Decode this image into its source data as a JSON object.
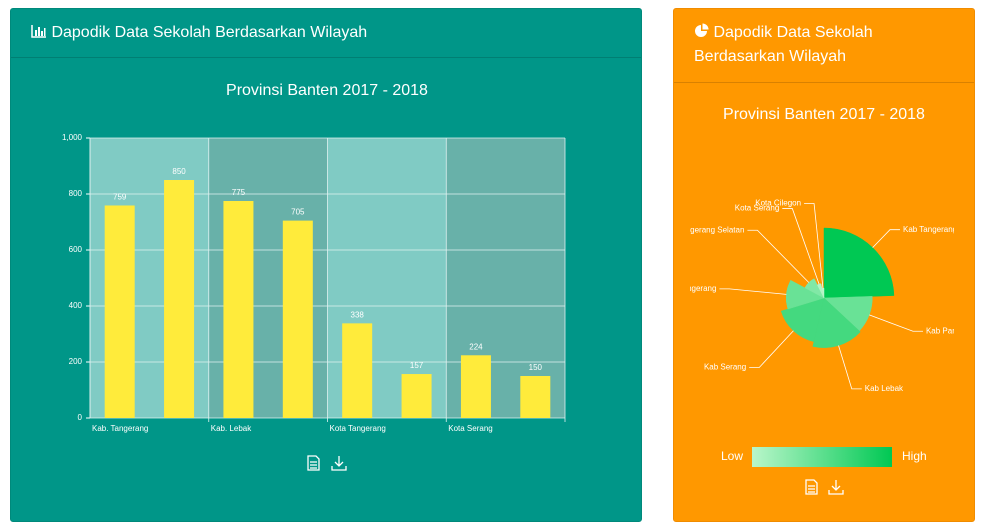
{
  "panels": [
    {
      "title": "Dapodik Data Sekolah Berdasarkan Wilayah"
    },
    {
      "title": "Dapodik Data Sekolah Berdasarkan Wilayah"
    }
  ],
  "chart_data": [
    {
      "type": "bar",
      "title": "Provinsi Banten 2017 - 2018",
      "categories": [
        "Kab. Tangerang",
        "Kab. Lebak",
        "Kota Tangerang",
        "Kota Serang"
      ],
      "series": [
        {
          "color": "#ffeb3b",
          "values": [
            759,
            775,
            338,
            224
          ]
        },
        {
          "color": "#ffeb3b",
          "values": [
            850,
            705,
            157,
            150
          ]
        }
      ],
      "ylim": [
        0,
        1000
      ],
      "yticks": [
        0,
        200,
        400,
        600,
        800,
        {
          "value": 1000,
          "label": "1,000"
        }
      ],
      "grid": true
    },
    {
      "type": "variablepie",
      "title": "Provinsi Banten 2017 - 2018",
      "categories": [
        "Kab Tangerang",
        "Kab Pandeglang",
        "Kab Lebak",
        "Kab Serang",
        "Kota Tangerang",
        "Kota Tangerang Selatan",
        "Kota Serang",
        "Kota Cilegon"
      ],
      "values": [
        88,
        45,
        60,
        60,
        45,
        35,
        15,
        12
      ],
      "z": [
        100,
        69,
        71,
        64,
        54,
        31,
        21,
        14
      ],
      "color_axis": {
        "min_color": "#b9f6ca",
        "max_color": "#00c853",
        "low": "Low",
        "high": "High"
      }
    }
  ]
}
